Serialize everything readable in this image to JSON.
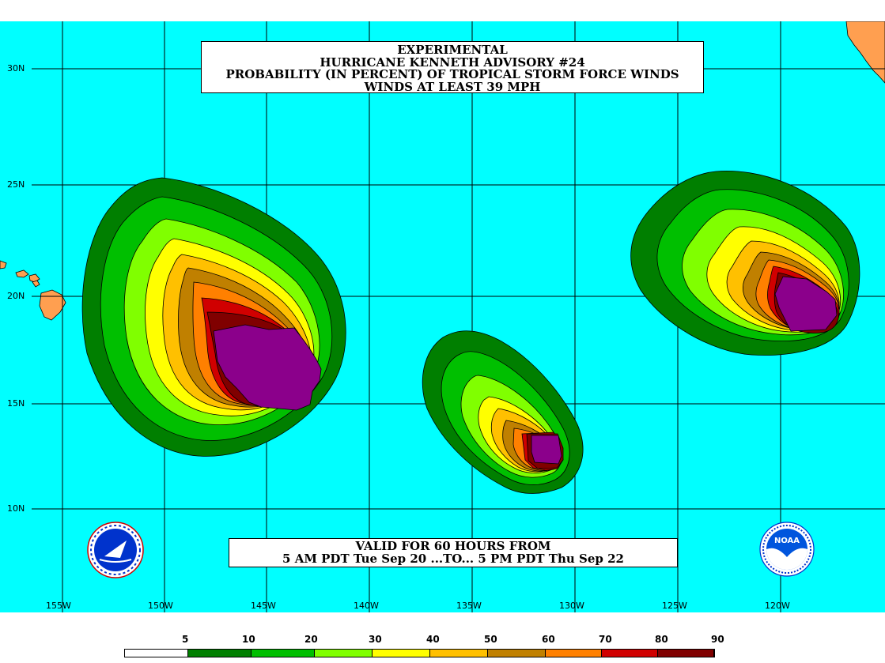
{
  "title_lines": [
    "EXPERIMENTAL",
    "HURRICANE KENNETH ADVISORY #24",
    "PROBABILITY (IN PERCENT) OF TROPICAL STORM FORCE WINDS",
    "WINDS AT LEAST 39 MPH"
  ],
  "valid_lines": [
    "VALID FOR 60 HOURS FROM",
    "5 AM PDT Tue Sep 20 ...TO... 5 PM PDT Thu Sep 22"
  ],
  "lat_labels": [
    "30N",
    "25N",
    "20N",
    "15N",
    "10N"
  ],
  "lon_labels": [
    "155W",
    "150W",
    "145W",
    "140W",
    "135W",
    "130W",
    "125W",
    "120W"
  ],
  "legend": {
    "values": [
      "5",
      "10",
      "20",
      "30",
      "40",
      "50",
      "60",
      "70",
      "80",
      "90"
    ],
    "colors": [
      "#ffffff",
      "#007f00",
      "#00bf00",
      "#80ff00",
      "#ffff00",
      "#ffc000",
      "#c08000",
      "#ff8000",
      "#d00000",
      "#800000",
      "#8b008b"
    ]
  },
  "colors": {
    "ocean": "#00ffff",
    "land": "#ff9f50",
    "grid": "#000000"
  },
  "logos": {
    "left": "nws-logo",
    "right": "noaa-logo",
    "right_text": "NOAA"
  }
}
